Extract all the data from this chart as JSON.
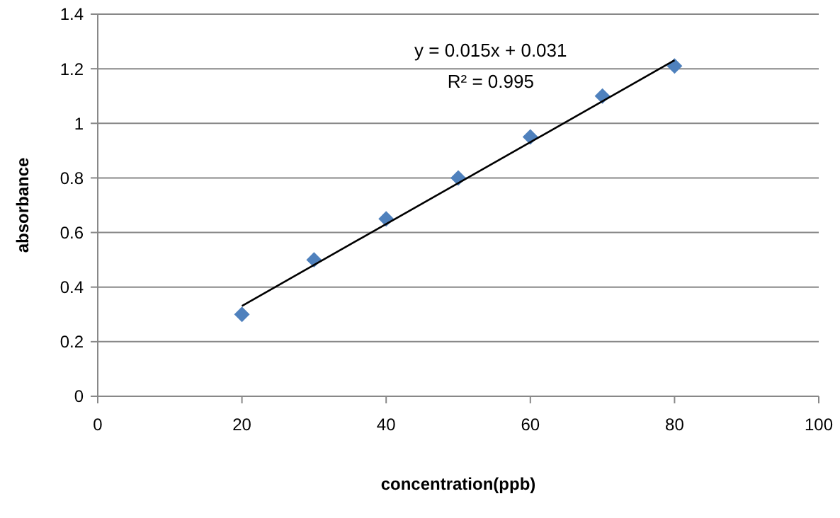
{
  "chart_data": {
    "type": "scatter",
    "xlabel": "concentration(ppb)",
    "ylabel": "absorbance",
    "xlim": [
      0,
      100
    ],
    "xticks": [
      0,
      20,
      40,
      60,
      80,
      100
    ],
    "ylim": [
      0,
      1.4
    ],
    "yticks": [
      0,
      0.2,
      0.4,
      0.6,
      0.8,
      1,
      1.2,
      1.4
    ],
    "grid": "y",
    "annotations": [
      "y = 0.015x + 0.031",
      "R² = 0.995"
    ],
    "series": [
      {
        "color": "#4f81bd",
        "marker": "diamond",
        "x": [
          20,
          30,
          40,
          50,
          60,
          70,
          80
        ],
        "values": [
          0.3,
          0.5,
          0.65,
          0.8,
          0.95,
          1.1,
          1.21
        ]
      },
      {
        "type": "line",
        "color": "#000000",
        "x": [
          20,
          80
        ],
        "values": [
          0.331,
          1.231
        ]
      }
    ]
  }
}
